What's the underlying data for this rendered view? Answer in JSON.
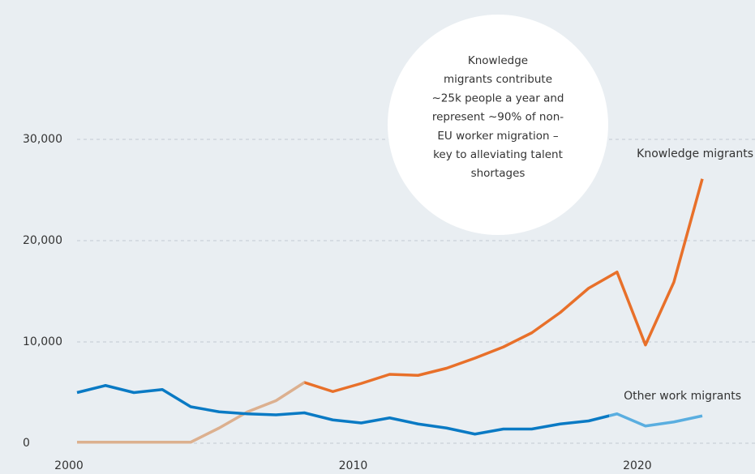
{
  "chart_data": {
    "type": "line",
    "x": [
      2000,
      2001,
      2002,
      2003,
      2004,
      2005,
      2006,
      2007,
      2008,
      2009,
      2010,
      2011,
      2012,
      2013,
      2014,
      2015,
      2016,
      2017,
      2018,
      2019,
      2020,
      2021,
      2022
    ],
    "xlim": [
      2000,
      2022
    ],
    "xticks": [
      2000,
      2010,
      2020
    ],
    "ylim": [
      0,
      30000
    ],
    "yticks": [
      0,
      {
        "value": 10000,
        "label": "10,000"
      },
      {
        "value": 20000,
        "label": "20,000"
      },
      {
        "value": 30000,
        "label": "30,000"
      }
    ],
    "grid": true,
    "series": [
      {
        "name": "Knowledge migrants",
        "color": "#e8702a",
        "faded_color": "#dcb08f",
        "faded_until": 2008,
        "values": [
          100,
          100,
          100,
          100,
          100,
          1500,
          3100,
          4200,
          6000,
          5100,
          5900,
          6800,
          6700,
          7400,
          8400,
          9500,
          10900,
          12900,
          15300,
          16900,
          9700,
          15900,
          26100
        ]
      },
      {
        "name": "Other work migrants",
        "color": "#0a7ac4",
        "faded_color": "#5aaee0",
        "faded_from": 2019,
        "values": [
          5000,
          5700,
          5000,
          5300,
          3600,
          3100,
          2900,
          2800,
          3000,
          2300,
          2000,
          2500,
          1900,
          1500,
          900,
          1400,
          1400,
          1900,
          2200,
          2900,
          1700,
          2100,
          2700
        ]
      }
    ],
    "annotation": [
      "Knowledge",
      "migrants contribute",
      "∼25k people a year and",
      "represent ∼90% of non-",
      "EU worker migration –",
      "key to alleviating talent",
      "shortages"
    ]
  }
}
